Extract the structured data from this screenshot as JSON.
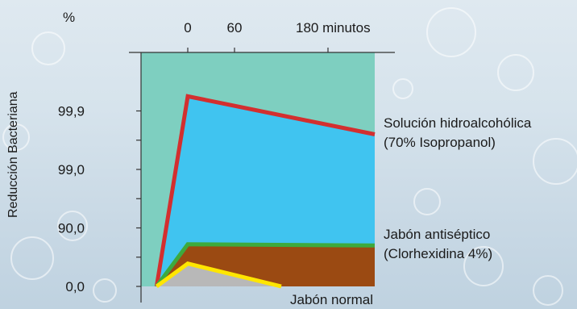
{
  "chart_data": {
    "type": "line",
    "y_unit": "%",
    "ylabel": "Reducción Bacteriana",
    "y_tick_labels": [
      "0,0",
      "90,0",
      "99,0",
      "99,9"
    ],
    "x_tick_labels": [
      "0",
      "60",
      "180 minutos"
    ],
    "x_ticks": [
      0,
      60,
      180
    ],
    "xlim": [
      -60,
      240
    ],
    "ylim": [
      0,
      4
    ],
    "grid": false,
    "series": [
      {
        "name": "Solución hidroalcohólica (70% Isopropanol)",
        "label_lines": [
          "Solución hidroalcohólica",
          "(70% Isopropanol)"
        ],
        "color": "#d32f2f",
        "fill": "#40c4f0",
        "x": [
          -40,
          0,
          240
        ],
        "y": [
          0,
          3.25,
          2.6
        ]
      },
      {
        "name": "Jabón antiséptico (Clorhexidina 4%)",
        "label_lines": [
          "Jabón antiséptico",
          "(Clorhexidina 4%)"
        ],
        "color": "#3daa3d",
        "fill": "#9b4a12",
        "x": [
          -40,
          0,
          240
        ],
        "y": [
          0,
          0.72,
          0.7
        ]
      },
      {
        "name": "Jabón normal",
        "label_lines": [
          "Jabón normal"
        ],
        "color": "#ffe600",
        "fill": "#b8b8b8",
        "x": [
          -40,
          0,
          120
        ],
        "y": [
          0,
          0.39,
          0
        ]
      }
    ],
    "colors": {
      "plot_background": "#7ecfc0",
      "axis": "#333333"
    }
  }
}
